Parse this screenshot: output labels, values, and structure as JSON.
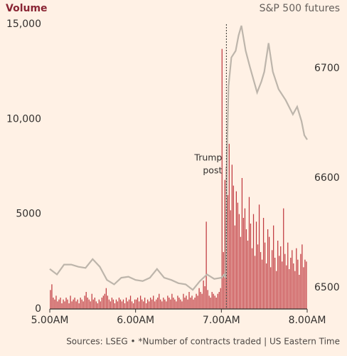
{
  "chart_data": {
    "type": "bar",
    "y_label": "Volume",
    "y2_label": "S&P 500 futures",
    "annotation": [
      "Trump",
      "post"
    ],
    "annotation_x": 124,
    "source": "Sources: LSEG • *Number of contracts traded | US Eastern Time",
    "xlim": [
      0,
      180
    ],
    "xticks": [
      {
        "value": 0,
        "label": "5.00AM"
      },
      {
        "value": 60,
        "label": "6.00AM"
      },
      {
        "value": 120,
        "label": "7.00AM"
      },
      {
        "value": 180,
        "label": "8.00AM"
      }
    ],
    "ylim": [
      0,
      15000
    ],
    "yticks": [
      0,
      5000,
      {
        "value": 10000,
        "label": "10,000"
      },
      {
        "value": 15000,
        "label": "15,000"
      }
    ],
    "y2lim": [
      6480.5,
      6740.3
    ],
    "y2ticks": [
      6500,
      6600,
      6700
    ],
    "series": [
      {
        "name": "Volume",
        "color": "#c0393f",
        "x": [
          0,
          1,
          2,
          3,
          4,
          5,
          6,
          7,
          8,
          9,
          10,
          11,
          12,
          13,
          14,
          15,
          16,
          17,
          18,
          19,
          20,
          21,
          22,
          23,
          24,
          25,
          26,
          27,
          28,
          29,
          30,
          31,
          32,
          33,
          34,
          35,
          36,
          37,
          38,
          39,
          40,
          41,
          42,
          43,
          44,
          45,
          46,
          47,
          48,
          49,
          50,
          51,
          52,
          53,
          54,
          55,
          56,
          57,
          58,
          59,
          60,
          61,
          62,
          63,
          64,
          65,
          66,
          67,
          68,
          69,
          70,
          71,
          72,
          73,
          74,
          75,
          76,
          77,
          78,
          79,
          80,
          81,
          82,
          83,
          84,
          85,
          86,
          87,
          88,
          89,
          90,
          91,
          92,
          93,
          94,
          95,
          96,
          97,
          98,
          99,
          100,
          101,
          102,
          103,
          104,
          105,
          106,
          107,
          108,
          109,
          110,
          111,
          112,
          113,
          114,
          115,
          116,
          117,
          118,
          119,
          120,
          121,
          122,
          123,
          124,
          125,
          126,
          127,
          128,
          129,
          130,
          131,
          132,
          133,
          134,
          135,
          136,
          137,
          138,
          139,
          140,
          141,
          142,
          143,
          144,
          145,
          146,
          147,
          148,
          149,
          150,
          151,
          152,
          153,
          154,
          155,
          156,
          157,
          158,
          159,
          160,
          161,
          162,
          163,
          164,
          165,
          166,
          167,
          168,
          169,
          170,
          171,
          172,
          173,
          174,
          175,
          176,
          177,
          178,
          179
        ],
        "values": [
          1000,
          1300,
          600,
          500,
          700,
          400,
          500,
          600,
          300,
          500,
          400,
          600,
          500,
          300,
          700,
          400,
          500,
          600,
          400,
          500,
          300,
          600,
          500,
          400,
          700,
          900,
          600,
          500,
          400,
          800,
          500,
          600,
          400,
          300,
          500,
          400,
          600,
          700,
          800,
          1100,
          700,
          500,
          400,
          600,
          500,
          300,
          500,
          400,
          600,
          500,
          400,
          500,
          300,
          600,
          400,
          500,
          700,
          400,
          300,
          500,
          500,
          600,
          400,
          700,
          500,
          400,
          600,
          300,
          500,
          400,
          600,
          500,
          700,
          400,
          500,
          600,
          800,
          500,
          400,
          600,
          500,
          400,
          700,
          600,
          500,
          800,
          600,
          500,
          400,
          700,
          600,
          500,
          400,
          800,
          600,
          700,
          500,
          900,
          600,
          700,
          500,
          600,
          800,
          700,
          1100,
          900,
          800,
          1500,
          1200,
          4600,
          1000,
          700,
          600,
          900,
          800,
          700,
          600,
          800,
          900,
          1100,
          13700,
          3000,
          6800,
          7500,
          6000,
          8700,
          5200,
          7600,
          6500,
          4400,
          6200,
          5600,
          5000,
          3800,
          6900,
          4800,
          5300,
          4200,
          3600,
          5900,
          4500,
          3200,
          5000,
          2800,
          4600,
          3400,
          5500,
          3000,
          2600,
          4800,
          3500,
          2400,
          4200,
          3800,
          2200,
          3100,
          4400,
          2700,
          2000,
          3600,
          2800,
          3300,
          2500,
          5300,
          2900,
          2300,
          3500,
          2100,
          2700,
          3100,
          2400,
          2000,
          3200,
          2600,
          1800,
          2900,
          3400,
          2200,
          2600,
          2500
        ]
      },
      {
        "name": "S&P 500 futures",
        "color": "#bdb5ab",
        "axis": "y2",
        "type": "line",
        "x": [
          0,
          5,
          10,
          15,
          20,
          25,
          30,
          35,
          40,
          45,
          50,
          55,
          60,
          65,
          70,
          75,
          80,
          85,
          90,
          95,
          100,
          105,
          110,
          115,
          120,
          122,
          123,
          124,
          125,
          127,
          130,
          132,
          134,
          137,
          140,
          145,
          148,
          150,
          153,
          156,
          160,
          165,
          170,
          173,
          176,
          178,
          180
        ],
        "values": [
          6517,
          6512,
          6521,
          6521,
          6519,
          6518,
          6526,
          6519,
          6507,
          6503,
          6509,
          6510,
          6507,
          6506,
          6509,
          6517,
          6509,
          6507,
          6504,
          6503,
          6498,
          6506,
          6512,
          6508,
          6509,
          6512,
          6509,
          6626,
          6684,
          6710,
          6716,
          6730,
          6739,
          6716,
          6701,
          6678,
          6688,
          6697,
          6723,
          6697,
          6681,
          6671,
          6658,
          6665,
          6652,
          6639,
          6635
        ]
      }
    ]
  }
}
